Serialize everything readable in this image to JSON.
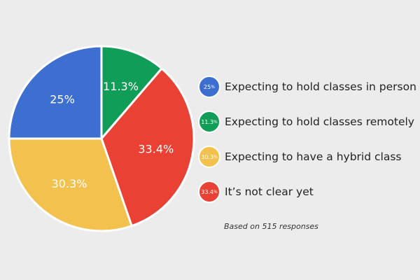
{
  "chart_data": {
    "type": "pie",
    "slices": [
      {
        "label": "Expecting to hold classes remotely",
        "value": 11.3,
        "display": "11.3%",
        "badge": "11.3",
        "color": "#0f9d58"
      },
      {
        "label": "It’s not clear yet",
        "value": 33.4,
        "display": "33.4%",
        "badge": "33.4",
        "color": "#e94235"
      },
      {
        "label": "Expecting to have a hybrid class",
        "value": 30.3,
        "display": "30.3%",
        "badge": "30.3",
        "color": "#f2c14e"
      },
      {
        "label": "Expecting to hold classes in person",
        "value": 25,
        "display": "25%",
        "badge": "25",
        "color": "#3d6fd1"
      }
    ],
    "legend": [
      {
        "badge": "25",
        "label": "Expecting to hold classes in person",
        "color": "#3d6fd1"
      },
      {
        "badge": "11.3",
        "label": "Expecting to hold classes remotely",
        "color": "#0f9d58"
      },
      {
        "badge": "30.3",
        "label": "Expecting to have a hybrid class",
        "color": "#f2c14e"
      },
      {
        "badge": "33.4",
        "label": "It’s not clear yet",
        "color": "#e94235"
      }
    ],
    "legend_placement": "right"
  },
  "footnote": "Based on 515 responses"
}
